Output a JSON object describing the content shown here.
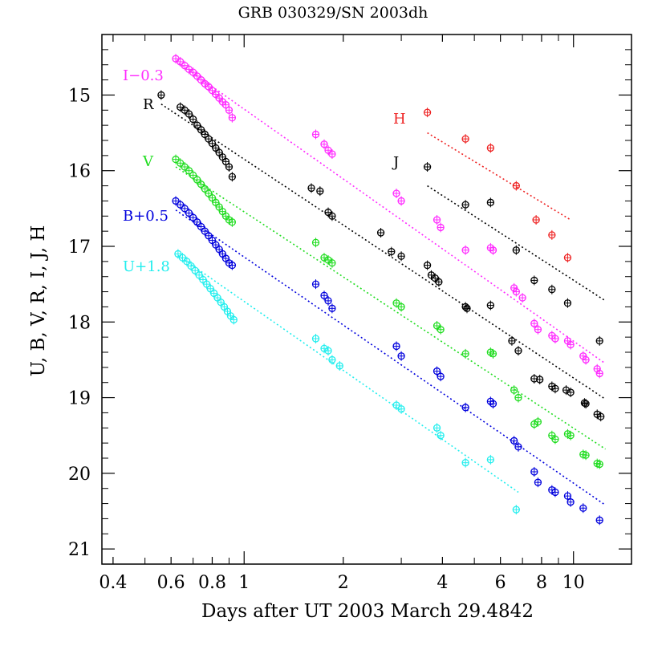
{
  "chart_data": {
    "type": "scatter",
    "title": "GRB 030329/SN 2003dh",
    "xlabel": "Days after UT 2003 March 29.4842",
    "ylabel": "U, B, V, R, I, J, H",
    "x_scale": "log",
    "xlim": [
      0.37,
      15.0
    ],
    "ylim": [
      21.2,
      14.2
    ],
    "y_inverted": true,
    "x_ticks": [
      0.4,
      0.6,
      0.8,
      1,
      2,
      4,
      6,
      8,
      10
    ],
    "y_ticks": [
      15,
      16,
      17,
      18,
      19,
      20,
      21
    ],
    "series": [
      {
        "name": "I−0.3",
        "color": "#ff2bff",
        "points": [
          [
            0.62,
            14.52
          ],
          [
            0.64,
            14.56
          ],
          [
            0.66,
            14.61
          ],
          [
            0.68,
            14.66
          ],
          [
            0.7,
            14.7
          ],
          [
            0.72,
            14.75
          ],
          [
            0.74,
            14.8
          ],
          [
            0.76,
            14.85
          ],
          [
            0.78,
            14.89
          ],
          [
            0.8,
            14.94
          ],
          [
            0.82,
            14.99
          ],
          [
            0.84,
            15.04
          ],
          [
            0.86,
            15.09
          ],
          [
            0.88,
            15.13
          ],
          [
            0.9,
            15.2
          ],
          [
            0.92,
            15.3
          ],
          [
            1.65,
            15.52
          ],
          [
            1.75,
            15.65
          ],
          [
            1.8,
            15.73
          ],
          [
            1.85,
            15.78
          ],
          [
            2.9,
            16.3
          ],
          [
            3.0,
            16.4
          ],
          [
            3.85,
            16.65
          ],
          [
            3.95,
            16.75
          ],
          [
            4.7,
            17.05
          ],
          [
            5.6,
            17.02
          ],
          [
            5.7,
            17.05
          ],
          [
            6.6,
            17.55
          ],
          [
            6.7,
            17.6
          ],
          [
            7.0,
            17.68
          ],
          [
            7.6,
            18.02
          ],
          [
            7.8,
            18.1
          ],
          [
            8.6,
            18.18
          ],
          [
            8.8,
            18.22
          ],
          [
            9.6,
            18.25
          ],
          [
            9.8,
            18.3
          ],
          [
            10.7,
            18.45
          ],
          [
            10.9,
            18.5
          ],
          [
            11.8,
            18.62
          ],
          [
            12.0,
            18.68
          ]
        ],
        "fit": [
          [
            0.62,
            14.55
          ],
          [
            12.5,
            18.55
          ]
        ]
      },
      {
        "name": "R",
        "color": "#000000",
        "points": [
          [
            0.56,
            15.0
          ],
          [
            0.64,
            15.16
          ],
          [
            0.66,
            15.2
          ],
          [
            0.68,
            15.25
          ],
          [
            0.7,
            15.32
          ],
          [
            0.72,
            15.4
          ],
          [
            0.74,
            15.46
          ],
          [
            0.76,
            15.52
          ],
          [
            0.78,
            15.58
          ],
          [
            0.8,
            15.64
          ],
          [
            0.82,
            15.7
          ],
          [
            0.84,
            15.76
          ],
          [
            0.86,
            15.82
          ],
          [
            0.88,
            15.88
          ],
          [
            0.9,
            15.95
          ],
          [
            0.92,
            16.08
          ],
          [
            1.6,
            16.23
          ],
          [
            1.7,
            16.27
          ],
          [
            1.8,
            16.55
          ],
          [
            1.85,
            16.6
          ],
          [
            2.6,
            16.82
          ],
          [
            2.8,
            17.07
          ],
          [
            3.0,
            17.13
          ],
          [
            3.6,
            17.25
          ],
          [
            3.7,
            17.38
          ],
          [
            3.8,
            17.42
          ],
          [
            3.9,
            17.47
          ],
          [
            4.7,
            17.8
          ],
          [
            4.75,
            17.82
          ],
          [
            5.6,
            17.78
          ],
          [
            6.5,
            18.25
          ],
          [
            6.8,
            18.38
          ],
          [
            7.6,
            18.75
          ],
          [
            7.9,
            18.76
          ],
          [
            8.6,
            18.85
          ],
          [
            8.8,
            18.88
          ],
          [
            9.5,
            18.9
          ],
          [
            9.8,
            18.93
          ],
          [
            10.8,
            19.07
          ],
          [
            10.9,
            19.08
          ],
          [
            11.8,
            19.22
          ],
          [
            12.1,
            19.25
          ]
        ],
        "fit": [
          [
            0.56,
            15.12
          ],
          [
            12.5,
            19.02
          ]
        ]
      },
      {
        "name": "V",
        "color": "#22dd22",
        "points": [
          [
            0.62,
            15.85
          ],
          [
            0.64,
            15.9
          ],
          [
            0.66,
            15.95
          ],
          [
            0.68,
            16.0
          ],
          [
            0.7,
            16.06
          ],
          [
            0.72,
            16.12
          ],
          [
            0.74,
            16.18
          ],
          [
            0.76,
            16.24
          ],
          [
            0.78,
            16.3
          ],
          [
            0.8,
            16.36
          ],
          [
            0.82,
            16.42
          ],
          [
            0.84,
            16.48
          ],
          [
            0.86,
            16.54
          ],
          [
            0.88,
            16.6
          ],
          [
            0.9,
            16.65
          ],
          [
            0.92,
            16.68
          ],
          [
            1.65,
            16.95
          ],
          [
            1.75,
            17.15
          ],
          [
            1.8,
            17.18
          ],
          [
            1.85,
            17.22
          ],
          [
            2.9,
            17.75
          ],
          [
            3.0,
            17.8
          ],
          [
            3.85,
            18.05
          ],
          [
            3.95,
            18.1
          ],
          [
            4.7,
            18.42
          ],
          [
            5.6,
            18.4
          ],
          [
            5.7,
            18.42
          ],
          [
            6.6,
            18.9
          ],
          [
            6.8,
            19.0
          ],
          [
            7.6,
            19.35
          ],
          [
            7.8,
            19.32
          ],
          [
            8.6,
            19.5
          ],
          [
            8.8,
            19.55
          ],
          [
            9.6,
            19.48
          ],
          [
            9.8,
            19.5
          ],
          [
            10.7,
            19.75
          ],
          [
            10.9,
            19.76
          ],
          [
            11.8,
            19.87
          ],
          [
            12.0,
            19.88
          ]
        ],
        "fit": [
          [
            0.62,
            15.95
          ],
          [
            12.5,
            19.68
          ]
        ]
      },
      {
        "name": "B+0.5",
        "color": "#0000dd",
        "points": [
          [
            0.62,
            16.4
          ],
          [
            0.64,
            16.45
          ],
          [
            0.66,
            16.5
          ],
          [
            0.68,
            16.56
          ],
          [
            0.7,
            16.62
          ],
          [
            0.72,
            16.68
          ],
          [
            0.74,
            16.74
          ],
          [
            0.76,
            16.8
          ],
          [
            0.78,
            16.86
          ],
          [
            0.8,
            16.92
          ],
          [
            0.82,
            16.98
          ],
          [
            0.84,
            17.04
          ],
          [
            0.86,
            17.1
          ],
          [
            0.88,
            17.16
          ],
          [
            0.9,
            17.22
          ],
          [
            0.92,
            17.25
          ],
          [
            1.65,
            17.5
          ],
          [
            1.75,
            17.65
          ],
          [
            1.8,
            17.72
          ],
          [
            1.85,
            17.82
          ],
          [
            2.9,
            18.32
          ],
          [
            3.0,
            18.45
          ],
          [
            3.85,
            18.65
          ],
          [
            3.95,
            18.72
          ],
          [
            4.7,
            19.13
          ],
          [
            5.6,
            19.05
          ],
          [
            5.7,
            19.08
          ],
          [
            6.6,
            19.57
          ],
          [
            6.8,
            19.65
          ],
          [
            7.6,
            19.98
          ],
          [
            7.8,
            20.12
          ],
          [
            8.6,
            20.22
          ],
          [
            8.8,
            20.25
          ],
          [
            9.6,
            20.3
          ],
          [
            9.8,
            20.38
          ],
          [
            10.7,
            20.46
          ],
          [
            12.0,
            20.62
          ]
        ],
        "fit": [
          [
            0.62,
            16.52
          ],
          [
            12.5,
            20.42
          ]
        ]
      },
      {
        "name": "U+1.8",
        "color": "#22eeee",
        "points": [
          [
            0.63,
            17.1
          ],
          [
            0.65,
            17.15
          ],
          [
            0.67,
            17.2
          ],
          [
            0.69,
            17.26
          ],
          [
            0.71,
            17.32
          ],
          [
            0.73,
            17.38
          ],
          [
            0.75,
            17.44
          ],
          [
            0.77,
            17.5
          ],
          [
            0.79,
            17.56
          ],
          [
            0.81,
            17.62
          ],
          [
            0.83,
            17.68
          ],
          [
            0.85,
            17.74
          ],
          [
            0.87,
            17.8
          ],
          [
            0.89,
            17.86
          ],
          [
            0.91,
            17.92
          ],
          [
            0.93,
            17.97
          ],
          [
            1.65,
            18.22
          ],
          [
            1.75,
            18.35
          ],
          [
            1.8,
            18.38
          ],
          [
            1.85,
            18.5
          ],
          [
            1.95,
            18.58
          ],
          [
            2.9,
            19.1
          ],
          [
            3.0,
            19.15
          ],
          [
            3.85,
            19.4
          ],
          [
            3.95,
            19.5
          ],
          [
            4.7,
            19.86
          ],
          [
            5.6,
            19.82
          ],
          [
            6.7,
            20.48
          ]
        ],
        "fit": [
          [
            0.63,
            17.12
          ],
          [
            6.8,
            20.25
          ]
        ]
      },
      {
        "name": "J",
        "color": "#000000",
        "points": [
          [
            3.6,
            15.95
          ],
          [
            4.7,
            16.45
          ],
          [
            5.6,
            16.42
          ],
          [
            6.7,
            17.05
          ],
          [
            7.6,
            17.45
          ],
          [
            8.6,
            17.57
          ],
          [
            9.6,
            17.75
          ],
          [
            12.0,
            18.25
          ]
        ],
        "fit": [
          [
            3.6,
            16.2
          ],
          [
            12.5,
            17.72
          ]
        ]
      },
      {
        "name": "H",
        "color": "#ee2222",
        "points": [
          [
            3.6,
            15.23
          ],
          [
            4.7,
            15.58
          ],
          [
            5.6,
            15.7
          ],
          [
            6.7,
            16.2
          ],
          [
            7.7,
            16.65
          ],
          [
            8.6,
            16.85
          ],
          [
            9.6,
            17.15
          ]
        ],
        "fit": [
          [
            3.6,
            15.5
          ],
          [
            9.8,
            16.65
          ]
        ]
      }
    ],
    "band_labels": [
      {
        "text": "I−0.3",
        "color": "#ff2bff"
      },
      {
        "text": "R",
        "color": "#000000"
      },
      {
        "text": "V",
        "color": "#22dd22"
      },
      {
        "text": "B+0.5",
        "color": "#0000dd"
      },
      {
        "text": "U+1.8",
        "color": "#22eeee"
      },
      {
        "text": "H",
        "color": "#ee2222"
      },
      {
        "text": "J",
        "color": "#000000"
      }
    ],
    "grid": false,
    "legend": "none"
  }
}
